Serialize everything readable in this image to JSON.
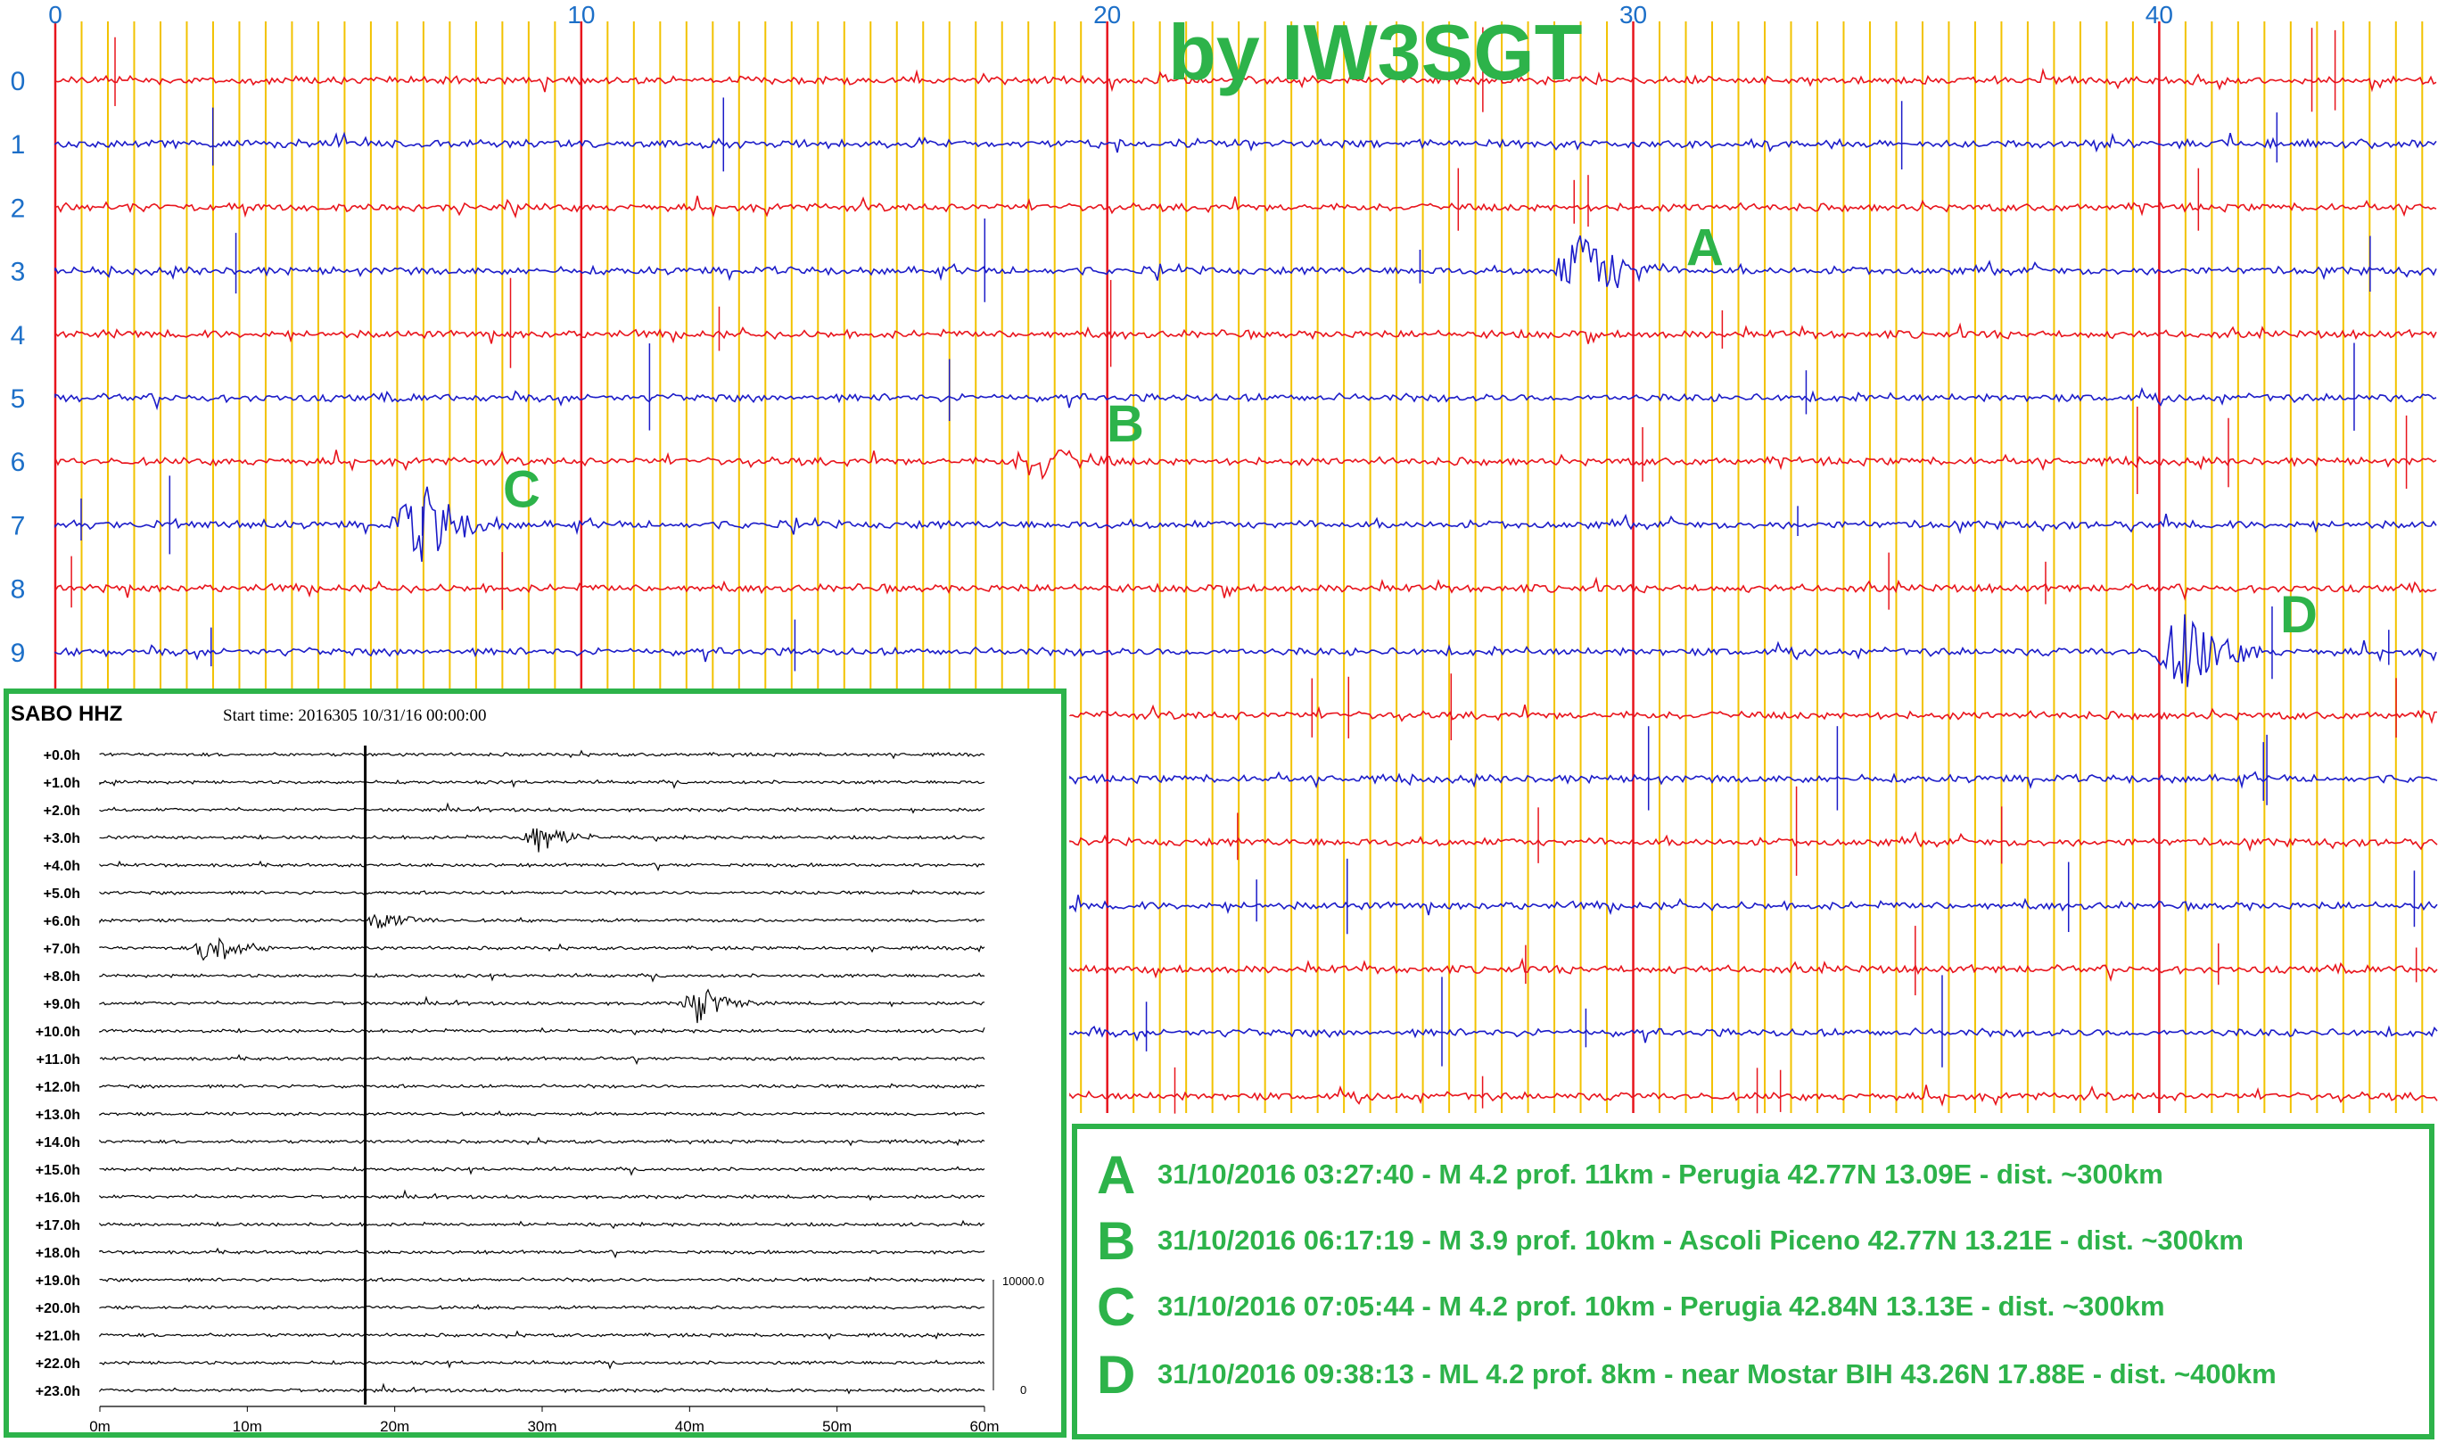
{
  "watermark": "by IW3SGT",
  "chart_data": [
    {
      "type": "line",
      "x_ticks": [
        "0",
        "10",
        "20",
        "30",
        "40"
      ],
      "xlim": [
        0,
        45
      ],
      "row_labels": [
        "0",
        "1",
        "2",
        "3",
        "4",
        "5",
        "6",
        "7",
        "8",
        "9"
      ],
      "rows_total": 17,
      "row_colors": [
        "#e8141c",
        "#1c1cc8"
      ],
      "grid_minor_color": "#f2c200",
      "grid_major_color": "#e8141c",
      "events": [
        {
          "label": "A",
          "row": 3,
          "x": 29.1,
          "amp": 1.0
        },
        {
          "label": "B",
          "row": 6,
          "x": 18.7,
          "amp": 0.45
        },
        {
          "label": "C",
          "row": 7,
          "x": 7.0,
          "amp": 1.0
        },
        {
          "label": "D",
          "row": 9,
          "x": 40.5,
          "amp": 1.0
        }
      ]
    },
    {
      "type": "line",
      "title": "SABO HHZ",
      "subtitle": "Start time: 2016305 10/31/16 00:00:00",
      "x_ticks": [
        "0m",
        "10m",
        "20m",
        "30m",
        "40m",
        "50m",
        "60m"
      ],
      "xlim": [
        0,
        60
      ],
      "row_labels": [
        "+0.0h",
        "+1.0h",
        "+2.0h",
        "+3.0h",
        "+4.0h",
        "+5.0h",
        "+6.0h",
        "+7.0h",
        "+8.0h",
        "+9.0h",
        "+10.0h",
        "+11.0h",
        "+12.0h",
        "+13.0h",
        "+14.0h",
        "+15.0h",
        "+16.0h",
        "+17.0h",
        "+18.0h",
        "+19.0h",
        "+20.0h",
        "+21.0h",
        "+22.0h",
        "+23.0h"
      ],
      "scale_labels": [
        "10000.0",
        "0"
      ],
      "events": [
        {
          "row": 3,
          "x": 29.5,
          "amp": 1.0
        },
        {
          "row": 7,
          "x": 7.5,
          "amp": 1.0
        },
        {
          "row": 9,
          "x": 40.5,
          "amp": 1.0
        },
        {
          "row": 6,
          "x": 19.0,
          "amp": 0.5
        }
      ]
    }
  ],
  "legend": [
    {
      "letter": "A",
      "text": "31/10/2016 03:27:40 - M 4.2 prof. 11km - Perugia 42.77N 13.09E - dist. ~300km"
    },
    {
      "letter": "B",
      "text": "31/10/2016 06:17:19 - M 3.9 prof. 10km - Ascoli Piceno 42.77N 13.21E - dist. ~300km"
    },
    {
      "letter": "C",
      "text": "31/10/2016 07:05:44 - M 4.2 prof. 10km - Perugia 42.84N 13.13E - dist. ~300km"
    },
    {
      "letter": "D",
      "text": "31/10/2016 09:38:13 - ML 4.2 prof. 8km - near Mostar BIH 43.26N 17.88E - dist. ~400km"
    }
  ]
}
